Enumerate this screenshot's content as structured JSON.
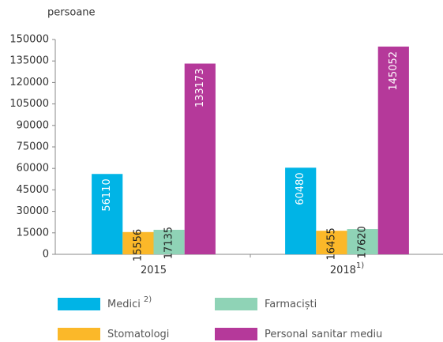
{
  "chart_data": {
    "type": "bar",
    "unit_label": "persoane",
    "categories": [
      "2015",
      "2018"
    ],
    "category_superscripts": [
      null,
      "1)"
    ],
    "series": [
      {
        "name": "Medici",
        "superscript": "2)",
        "color": "#00b4e6",
        "values": [
          56110,
          60480
        ]
      },
      {
        "name": "Stomatologi",
        "color": "#fbb829",
        "values": [
          15556,
          16455
        ]
      },
      {
        "name": "Farmaciști",
        "color": "#8fd3b6",
        "values": [
          17135,
          17620
        ]
      },
      {
        "name": "Personal sanitar mediu",
        "color": "#b5399a",
        "values": [
          133173,
          145052
        ]
      }
    ],
    "ylim": [
      0,
      150000
    ],
    "yticks": [
      0,
      15000,
      30000,
      45000,
      60000,
      75000,
      90000,
      105000,
      120000,
      135000,
      150000
    ],
    "grid": false
  }
}
